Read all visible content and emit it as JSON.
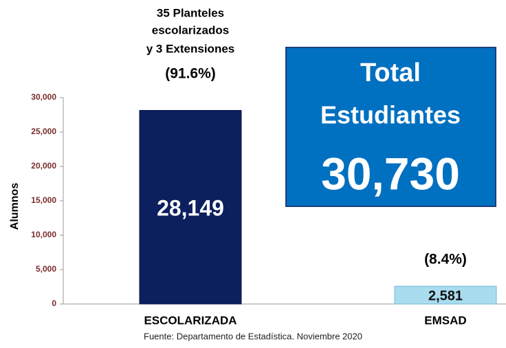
{
  "chart_data": {
    "type": "bar",
    "categories": [
      "ESCOLARIZADA",
      "EMSAD"
    ],
    "values": [
      28149,
      2581
    ],
    "value_labels": [
      "28,149",
      "2,581"
    ],
    "colors": [
      "#0c1f5e",
      "#a9dcef"
    ],
    "y_label": "Alumnos",
    "ylim": [
      0,
      30000
    ],
    "yticks": [
      0,
      {
        "value": 5000,
        "label": "5,000"
      },
      {
        "value": 10000,
        "label": "10,000"
      },
      {
        "value": 15000,
        "label": "15,000"
      },
      {
        "value": 20000,
        "label": "20,000"
      },
      {
        "value": 25000,
        "label": "25,000"
      },
      {
        "value": 30000,
        "label": "30,000"
      }
    ],
    "bar_annotations": [
      [
        "35 Planteles",
        "escolarizados",
        "y 3 Extensiones",
        "(91.6%)"
      ],
      [
        "(8.4%)"
      ]
    ],
    "total_box": {
      "lines": [
        "Total",
        "Estudiantes"
      ],
      "value": "30,730"
    },
    "source": "Fuente: Departamento de Estadística. Noviembre 2020"
  }
}
